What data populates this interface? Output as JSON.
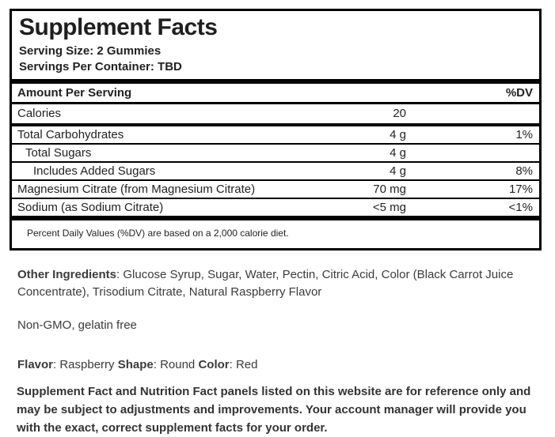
{
  "panel": {
    "title": "Supplement Facts",
    "serving_size": "Serving Size: 2 Gummies",
    "servings_per_container": "Servings Per Container: TBD",
    "header": {
      "amount_label": "Amount Per Serving",
      "dv_label": "%DV"
    },
    "rows": [
      {
        "name": "Calories",
        "amount": "20",
        "dv": ""
      },
      {
        "name": "Total Carbohydrates",
        "amount": "4 g",
        "dv": "1%"
      },
      {
        "name": "Total Sugars",
        "amount": "4 g",
        "dv": ""
      },
      {
        "name": "Includes Added Sugars",
        "amount": "4 g",
        "dv": "8%"
      },
      {
        "name": "Magnesium Citrate (from Magnesium Citrate)",
        "amount": "70 mg",
        "dv": "17%"
      },
      {
        "name": "Sodium (as Sodium Citrate)",
        "amount": "<5 mg",
        "dv": "<1%"
      }
    ],
    "footnote": "Percent Daily Values (%DV) are based on a 2,000 calorie diet."
  },
  "details": {
    "other_ingredients_label": "Other Ingredients",
    "other_ingredients_rest": ": Glucose Syrup, Sugar, Water, Pectin, Citric Acid, Color (Black Carrot Juice Concentrate), Trisodium Citrate, Natural Raspberry Flavor",
    "claims": "Non-GMO, gelatin free",
    "attributes": [
      {
        "label": "Flavor",
        "rest": ": Raspberry "
      },
      {
        "label": "Shape",
        "rest": ": Round "
      },
      {
        "label": "Color",
        "rest": ": Red"
      }
    ],
    "disclaimer": "Supplement Fact and Nutrition Fact panels listed on this website are for reference only and may be subject to adjustments and improvements. Your account manager will provide you with the exact, correct supplement facts for your order."
  },
  "colors": {
    "panel_border": "#000000",
    "panel_text": "#1f1f1f",
    "body_text": "#3b3b3b"
  }
}
